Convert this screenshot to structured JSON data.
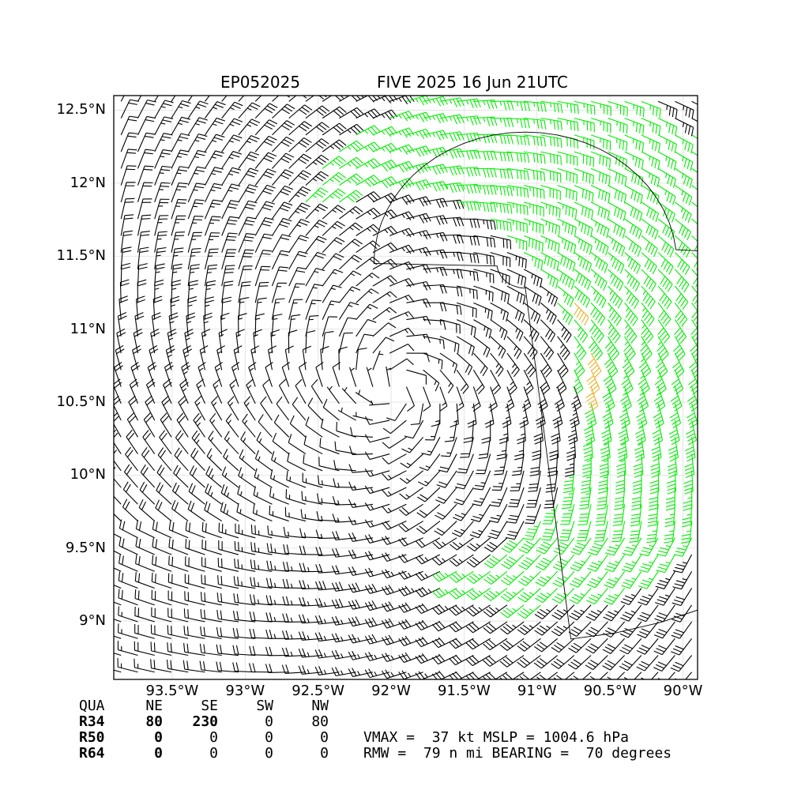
{
  "header": {
    "storm_id": "EP052025",
    "storm_info": "FIVE 2025 16 Jun 21UTC"
  },
  "axes": {
    "y_ticks": [
      "12.5°N",
      "12°N",
      "11.5°N",
      "11°N",
      "10.5°N",
      "10°N",
      "9.5°N",
      "9°N"
    ],
    "y_tick_values": [
      12.5,
      12.0,
      11.5,
      11.0,
      10.5,
      10.0,
      9.5,
      9.0
    ],
    "x_ticks": [
      "93.5°W",
      "93°W",
      "92.5°W",
      "92°W",
      "91.5°W",
      "91°W",
      "90.5°W",
      "90°W"
    ],
    "x_tick_values": [
      -93.5,
      -93.0,
      -92.5,
      -92.0,
      -91.5,
      -91.0,
      -90.5,
      -90.0
    ]
  },
  "wind_radii": {
    "header": {
      "label": "QUA",
      "cols": [
        "NE",
        "SE",
        "SW",
        "NW"
      ]
    },
    "rows": [
      {
        "label": "R34",
        "values": [
          "80",
          "230",
          "0",
          "80"
        ]
      },
      {
        "label": "R50",
        "values": [
          "0",
          "0",
          "0",
          "0"
        ]
      },
      {
        "label": "R64",
        "values": [
          "0",
          "0",
          "0",
          "0"
        ]
      }
    ]
  },
  "stats": {
    "line1": "VMAX =  37 kt MSLP = 1004.6 hPa",
    "line2": "RMW =  79 n mi BEARING =  70 degrees"
  },
  "colors": {
    "barb_default": "#000000",
    "barb_34kt": "#00ee00",
    "barb_50kt": "#f0b020",
    "grid": "#dddddd"
  },
  "chart_data": {
    "type": "wind-barb-map",
    "title": "EP052025 FIVE 2025 16 Jun 21UTC",
    "xlim": [
      -93.9,
      -89.9
    ],
    "ylim": [
      8.6,
      12.6
    ],
    "grid": true,
    "center": {
      "lon": -91.98,
      "lat": 10.6
    },
    "rmw_nmi": 79,
    "bearing_deg": 70,
    "vmax_kt": 37,
    "mslp_hpa": 1004.6,
    "r34_nmi": {
      "NE": 80,
      "SE": 230,
      "SW": 0,
      "NW": 80
    },
    "r50_nmi": {
      "NE": 0,
      "SE": 0,
      "SW": 0,
      "NW": 0
    },
    "r64_nmi": {
      "NE": 0,
      "SE": 0,
      "SW": 0,
      "NW": 0
    },
    "wind_thresholds_kt": {
      "green": 34,
      "orange": 50
    }
  }
}
